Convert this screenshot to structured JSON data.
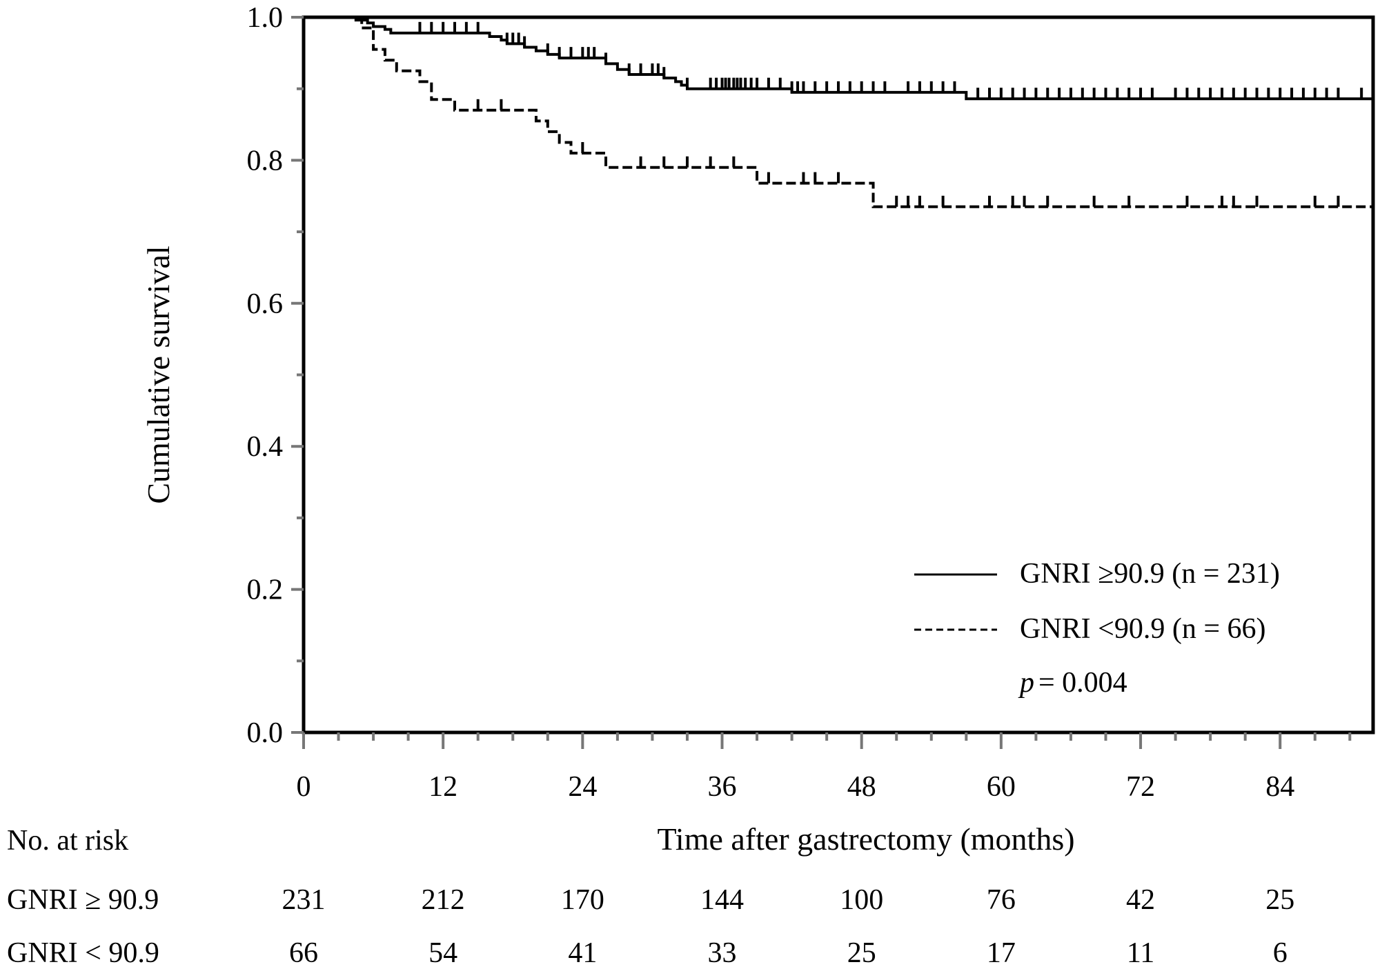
{
  "chart_data": {
    "type": "line",
    "subtype": "kaplan-meier",
    "title": "",
    "xlabel": "Time after gastrectomy (months)",
    "ylabel": "Cumulative survival",
    "xlim": [
      0,
      92
    ],
    "ylim": [
      0,
      1
    ],
    "x_ticks": [
      0,
      12,
      24,
      36,
      48,
      60,
      72,
      84
    ],
    "x_tick_labels": [
      "0",
      "12",
      "24",
      "36",
      "48",
      "60",
      "72",
      "84"
    ],
    "y_ticks": [
      0,
      0.2,
      0.4,
      0.6,
      0.8,
      1.0
    ],
    "y_tick_labels": [
      "0.0",
      "0.2",
      "0.4",
      "0.6",
      "0.8",
      "1.0"
    ],
    "legend_position": "bottom-right",
    "series": [
      {
        "name": "GNRI ≥90.9 (n = 231)",
        "line_style": "solid",
        "steps": [
          [
            0,
            1.0
          ],
          [
            4.5,
            0.996
          ],
          [
            5.5,
            0.992
          ],
          [
            6,
            0.987
          ],
          [
            7,
            0.983
          ],
          [
            7.5,
            0.978
          ],
          [
            16,
            0.973
          ],
          [
            17,
            0.968
          ],
          [
            17.5,
            0.963
          ],
          [
            19,
            0.958
          ],
          [
            20,
            0.953
          ],
          [
            21,
            0.948
          ],
          [
            22,
            0.943
          ],
          [
            26,
            0.935
          ],
          [
            27,
            0.927
          ],
          [
            28,
            0.92
          ],
          [
            31,
            0.915
          ],
          [
            32,
            0.91
          ],
          [
            32.5,
            0.905
          ],
          [
            33,
            0.9
          ],
          [
            42,
            0.895
          ],
          [
            57,
            0.886
          ],
          [
            92,
            0.886
          ]
        ],
        "censor_times": [
          10,
          11,
          12,
          13,
          14,
          15,
          17.5,
          18,
          18.5,
          19,
          21,
          22,
          23,
          24,
          24.5,
          25,
          26,
          28,
          29,
          30,
          30.5,
          31,
          33,
          35,
          35.5,
          36,
          36.3,
          36.6,
          37,
          37.3,
          37.6,
          38,
          38.5,
          39,
          40,
          41,
          42,
          42.5,
          43,
          44,
          45,
          46,
          47,
          48,
          49,
          50,
          52,
          53,
          54,
          55,
          56,
          58,
          59,
          60,
          61,
          62,
          63,
          64,
          65,
          66,
          67,
          68,
          69,
          70,
          71,
          72,
          73,
          75,
          76,
          77,
          78,
          79,
          80,
          81,
          82,
          83,
          84,
          85,
          86,
          87,
          88,
          89,
          91
        ]
      },
      {
        "name": "GNRI <90.9 (n = 66)",
        "line_style": "dashed",
        "steps": [
          [
            0,
            1.0
          ],
          [
            5,
            0.985
          ],
          [
            6,
            0.955
          ],
          [
            7,
            0.94
          ],
          [
            8,
            0.925
          ],
          [
            10,
            0.91
          ],
          [
            11,
            0.885
          ],
          [
            13,
            0.87
          ],
          [
            20,
            0.855
          ],
          [
            21,
            0.84
          ],
          [
            22,
            0.825
          ],
          [
            23,
            0.81
          ],
          [
            26,
            0.79
          ],
          [
            39,
            0.768
          ],
          [
            49,
            0.735
          ],
          [
            92,
            0.735
          ]
        ],
        "censor_times": [
          15,
          17,
          24,
          29,
          31,
          33,
          35,
          37,
          40,
          43,
          44,
          46,
          51,
          52,
          53,
          55,
          59,
          61,
          62,
          64,
          68,
          71,
          76,
          79,
          80,
          82,
          87,
          89
        ]
      }
    ],
    "annotation_p": "p",
    "annotation_value": "= 0.004",
    "risk_table": {
      "title": "No. at risk",
      "rows": [
        {
          "label": "GNRI ≥ 90.9",
          "values": [
            "231",
            "212",
            "170",
            "144",
            "100",
            "76",
            "42",
            "25"
          ]
        },
        {
          "label": "GNRI < 90.9",
          "values": [
            "66",
            "54",
            "41",
            "33",
            "25",
            "17",
            "11",
            "6"
          ]
        }
      ]
    }
  }
}
